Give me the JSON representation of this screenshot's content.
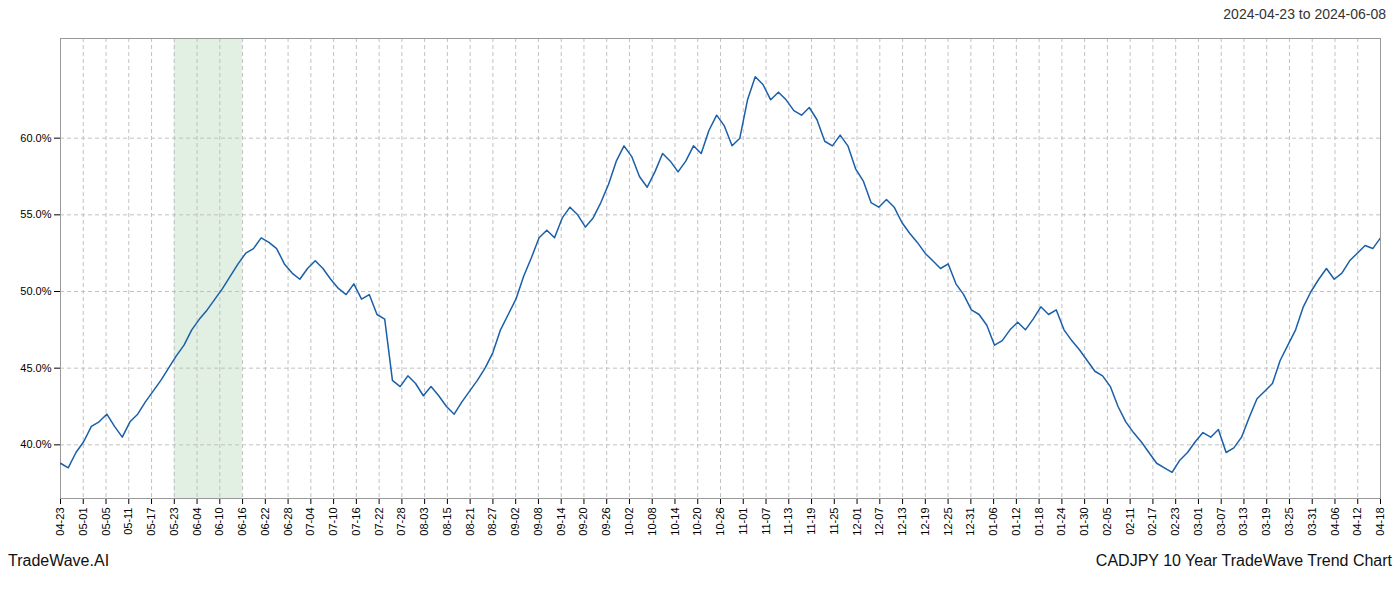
{
  "chart_data": {
    "type": "line",
    "title": "2024-04-23 to 2024-06-08",
    "annotations": [
      "TradeWave.AI",
      "CADJPY 10 Year TradeWave Trend Chart"
    ],
    "color": "#1a5fa8",
    "grid": true,
    "highlight": {
      "x": [
        5,
        8
      ],
      "color": "#d6ead8"
    },
    "xlim": [
      0,
      58
    ],
    "xticks": [
      {
        "value": 0,
        "label": "04-23"
      },
      {
        "value": 1,
        "label": "05-01"
      },
      {
        "value": 2,
        "label": "05-05"
      },
      {
        "value": 3,
        "label": "05-11"
      },
      {
        "value": 4,
        "label": "05-17"
      },
      {
        "value": 5,
        "label": "05-23"
      },
      {
        "value": 6,
        "label": "06-04"
      },
      {
        "value": 7,
        "label": "06-10"
      },
      {
        "value": 8,
        "label": "06-16"
      },
      {
        "value": 9,
        "label": "06-22"
      },
      {
        "value": 10,
        "label": "06-28"
      },
      {
        "value": 11,
        "label": "07-04"
      },
      {
        "value": 12,
        "label": "07-10"
      },
      {
        "value": 13,
        "label": "07-16"
      },
      {
        "value": 14,
        "label": "07-22"
      },
      {
        "value": 15,
        "label": "07-28"
      },
      {
        "value": 16,
        "label": "08-03"
      },
      {
        "value": 17,
        "label": "08-15"
      },
      {
        "value": 18,
        "label": "08-21"
      },
      {
        "value": 19,
        "label": "08-27"
      },
      {
        "value": 20,
        "label": "09-02"
      },
      {
        "value": 21,
        "label": "09-08"
      },
      {
        "value": 22,
        "label": "09-14"
      },
      {
        "value": 23,
        "label": "09-20"
      },
      {
        "value": 24,
        "label": "09-26"
      },
      {
        "value": 25,
        "label": "10-02"
      },
      {
        "value": 26,
        "label": "10-08"
      },
      {
        "value": 27,
        "label": "10-14"
      },
      {
        "value": 28,
        "label": "10-20"
      },
      {
        "value": 29,
        "label": "10-26"
      },
      {
        "value": 30,
        "label": "11-01"
      },
      {
        "value": 31,
        "label": "11-07"
      },
      {
        "value": 32,
        "label": "11-13"
      },
      {
        "value": 33,
        "label": "11-19"
      },
      {
        "value": 34,
        "label": "11-25"
      },
      {
        "value": 35,
        "label": "12-01"
      },
      {
        "value": 36,
        "label": "12-07"
      },
      {
        "value": 37,
        "label": "12-13"
      },
      {
        "value": 38,
        "label": "12-19"
      },
      {
        "value": 39,
        "label": "12-25"
      },
      {
        "value": 40,
        "label": "12-31"
      },
      {
        "value": 41,
        "label": "01-06"
      },
      {
        "value": 42,
        "label": "01-12"
      },
      {
        "value": 43,
        "label": "01-18"
      },
      {
        "value": 44,
        "label": "01-24"
      },
      {
        "value": 45,
        "label": "01-30"
      },
      {
        "value": 46,
        "label": "02-05"
      },
      {
        "value": 47,
        "label": "02-11"
      },
      {
        "value": 48,
        "label": "02-17"
      },
      {
        "value": 49,
        "label": "02-23"
      },
      {
        "value": 50,
        "label": "03-01"
      },
      {
        "value": 51,
        "label": "03-07"
      },
      {
        "value": 52,
        "label": "03-13"
      },
      {
        "value": 53,
        "label": "03-19"
      },
      {
        "value": 54,
        "label": "03-25"
      },
      {
        "value": 55,
        "label": "03-31"
      },
      {
        "value": 56,
        "label": "04-06"
      },
      {
        "value": 57,
        "label": "04-12"
      },
      {
        "value": 58,
        "label": "04-18"
      }
    ],
    "ylim": [
      36.5,
      66.5
    ],
    "yticks": [
      {
        "value": 40.0,
        "label": "40.0%"
      },
      {
        "value": 45.0,
        "label": "45.0%"
      },
      {
        "value": 50.0,
        "label": "50.0%"
      },
      {
        "value": 55.0,
        "label": "55.0%"
      },
      {
        "value": 60.0,
        "label": "60.0%"
      }
    ],
    "values": [
      38.8,
      38.5,
      39.5,
      40.2,
      41.2,
      41.5,
      42.0,
      41.2,
      40.5,
      41.5,
      42.0,
      42.8,
      43.5,
      44.2,
      45.0,
      45.8,
      46.5,
      47.5,
      48.2,
      48.8,
      49.5,
      50.2,
      51.0,
      51.8,
      52.5,
      52.8,
      53.5,
      53.2,
      52.8,
      51.8,
      51.2,
      50.8,
      51.5,
      52.0,
      51.5,
      50.8,
      50.2,
      49.8,
      50.5,
      49.5,
      49.8,
      48.5,
      48.2,
      44.2,
      43.8,
      44.5,
      44.0,
      43.2,
      43.8,
      43.2,
      42.5,
      42.0,
      42.8,
      43.5,
      44.2,
      45.0,
      46.0,
      47.5,
      48.5,
      49.5,
      51.0,
      52.2,
      53.5,
      54.0,
      53.5,
      54.8,
      55.5,
      55.0,
      54.2,
      54.8,
      55.8,
      57.0,
      58.5,
      59.5,
      58.8,
      57.5,
      56.8,
      57.8,
      59.0,
      58.5,
      57.8,
      58.5,
      59.5,
      59.0,
      60.5,
      61.5,
      60.8,
      59.5,
      60.0,
      62.5,
      64.0,
      63.5,
      62.5,
      63.0,
      62.5,
      61.8,
      61.5,
      62.0,
      61.2,
      59.8,
      59.5,
      60.2,
      59.5,
      58.0,
      57.2,
      55.8,
      55.5,
      56.0,
      55.5,
      54.5,
      53.8,
      53.2,
      52.5,
      52.0,
      51.5,
      51.8,
      50.5,
      49.8,
      48.8,
      48.5,
      47.8,
      46.5,
      46.8,
      47.5,
      48.0,
      47.5,
      48.2,
      49.0,
      48.5,
      48.8,
      47.5,
      46.8,
      46.2,
      45.5,
      44.8,
      44.5,
      43.8,
      42.5,
      41.5,
      40.8,
      40.2,
      39.5,
      38.8,
      38.5,
      38.2,
      39.0,
      39.5,
      40.2,
      40.8,
      40.5,
      41.0,
      39.5,
      39.8,
      40.5,
      41.8,
      43.0,
      43.5,
      44.0,
      45.5,
      46.5,
      47.5,
      49.0,
      50.0,
      50.8,
      51.5,
      50.8,
      51.2,
      52.0,
      52.5,
      53.0,
      52.8,
      53.5
    ]
  }
}
